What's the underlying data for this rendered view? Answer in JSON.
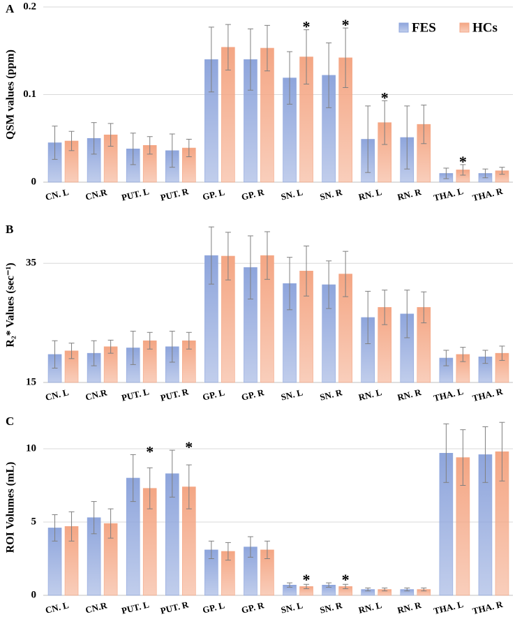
{
  "chart_data": [
    {
      "type": "bar",
      "panel": "A",
      "ylabel": "QSM  values (ppm)",
      "categories": [
        "CN. L",
        "CN.R",
        "PUT. L",
        "PUT. R",
        "GP. L",
        "GP. R",
        "SN. L",
        "SN. R",
        "RN. L",
        "RN. R",
        "THA. L",
        "THA. R"
      ],
      "series": [
        {
          "name": "FES",
          "color": "#8ea5dc",
          "values": [
            0.045,
            0.05,
            0.038,
            0.036,
            0.14,
            0.14,
            0.119,
            0.122,
            0.049,
            0.051,
            0.01,
            0.01
          ],
          "errors": [
            0.019,
            0.018,
            0.018,
            0.019,
            0.037,
            0.035,
            0.03,
            0.037,
            0.038,
            0.036,
            0.006,
            0.005
          ]
        },
        {
          "name": "HCs",
          "color": "#f4a684",
          "values": [
            0.047,
            0.054,
            0.042,
            0.039,
            0.154,
            0.153,
            0.143,
            0.142,
            0.068,
            0.066,
            0.014,
            0.013
          ],
          "errors": [
            0.011,
            0.013,
            0.01,
            0.01,
            0.026,
            0.026,
            0.031,
            0.034,
            0.025,
            0.022,
            0.006,
            0.004
          ]
        }
      ],
      "annotations": [
        {
          "text": "*",
          "category": "SN. L"
        },
        {
          "text": "*",
          "category": "SN. R"
        },
        {
          "text": "*",
          "category": "RN. L"
        },
        {
          "text": "*",
          "category": "THA. L"
        }
      ],
      "ylim": [
        0,
        0.2
      ],
      "yticks": [
        0,
        0.1,
        0.2
      ],
      "grid": true,
      "legend": "upper right"
    },
    {
      "type": "bar",
      "panel": "B",
      "ylabel": "R₂* Values (sec⁻¹)",
      "categories": [
        "CN. L",
        "CN.R",
        "PUT. L",
        "PUT. R",
        "GP. L",
        "GP. R",
        "SN. L",
        "SN. R",
        "RN. L",
        "RN. R",
        "THA. L",
        "THA. R"
      ],
      "series": [
        {
          "color": "#8ea5dc",
          "values": [
            19.7,
            19.9,
            20.8,
            21.0,
            36.3,
            34.3,
            31.6,
            31.4,
            25.9,
            26.5,
            19.1,
            19.3
          ],
          "errors": [
            2.3,
            2.1,
            2.8,
            2.6,
            4.8,
            5.3,
            4.4,
            4.0,
            4.4,
            4.0,
            1.3,
            1.1
          ]
        },
        {
          "color": "#f4a684",
          "values": [
            20.3,
            21.0,
            22.0,
            22.0,
            36.2,
            36.3,
            33.7,
            33.2,
            27.6,
            27.6,
            19.7,
            19.9
          ],
          "errors": [
            1.3,
            1.1,
            1.4,
            1.4,
            4.0,
            4.0,
            4.2,
            3.8,
            2.9,
            2.6,
            1.2,
            1.2
          ]
        }
      ],
      "ylim": [
        15,
        41
      ],
      "yticks": [
        15,
        35
      ],
      "grid": true
    },
    {
      "type": "bar",
      "panel": "C",
      "ylabel": "ROI  Volumes (mL)",
      "categories": [
        "CN. L",
        "CN.R",
        "PUT. L",
        "PUT. R",
        "GP. L",
        "GP. R",
        "SN. L",
        "SN. R",
        "RN. L",
        "RN. R",
        "THA. L",
        "THA. R"
      ],
      "series": [
        {
          "color": "#8ea5dc",
          "values": [
            4.6,
            5.3,
            8.0,
            8.3,
            3.1,
            3.3,
            0.7,
            0.7,
            0.4,
            0.4,
            9.7,
            9.6
          ],
          "errors": [
            0.9,
            1.1,
            1.6,
            1.6,
            0.6,
            0.7,
            0.15,
            0.15,
            0.1,
            0.1,
            2.0,
            1.9
          ]
        },
        {
          "color": "#f4a684",
          "values": [
            4.7,
            4.9,
            7.3,
            7.4,
            3.0,
            3.1,
            0.6,
            0.6,
            0.4,
            0.4,
            9.4,
            9.8
          ],
          "errors": [
            1.0,
            1.0,
            1.4,
            1.5,
            0.6,
            0.6,
            0.15,
            0.15,
            0.1,
            0.1,
            1.9,
            2.0
          ]
        }
      ],
      "annotations": [
        {
          "text": "*",
          "category": "PUT. L"
        },
        {
          "text": "*",
          "category": "PUT. R"
        },
        {
          "text": "*",
          "category": "SN. L"
        },
        {
          "text": "*",
          "category": "SN. R"
        }
      ],
      "ylim": [
        0,
        12
      ],
      "yticks": [
        0,
        5,
        10
      ],
      "grid": true
    }
  ]
}
